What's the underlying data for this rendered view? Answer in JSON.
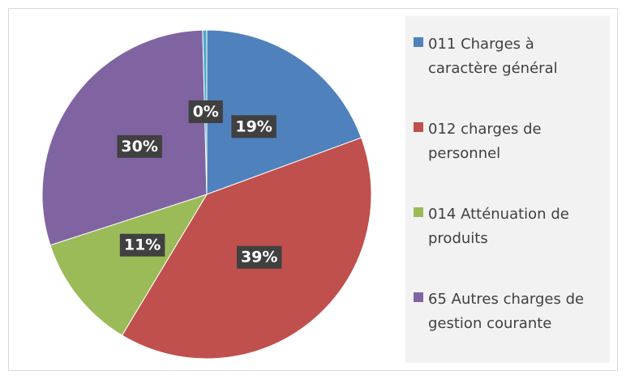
{
  "chart_data": {
    "type": "pie",
    "categories": [
      "011 Charges à caractère général",
      "012 charges de personnel",
      "014 Atténuation de produits",
      "65 Autres charges de gestion courante",
      null
    ],
    "values": [
      19.4,
      39.2,
      11.4,
      29.6,
      0.4
    ],
    "value_labels": [
      "19%",
      "39%",
      "11%",
      "30%",
      "0%"
    ],
    "colors": [
      "#4f81bd",
      "#c0504d",
      "#9bbb59",
      "#8064a2",
      "#4bacc6"
    ],
    "legend": "right"
  }
}
